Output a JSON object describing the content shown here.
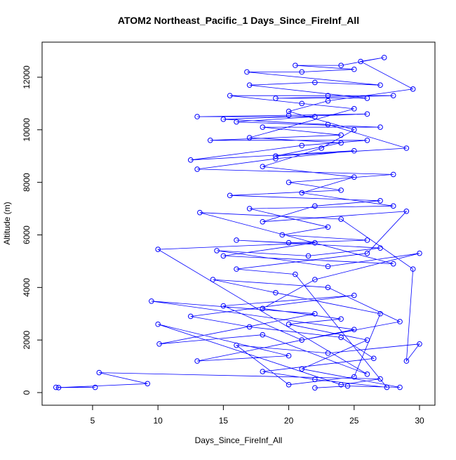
{
  "chart_data": {
    "type": "line",
    "markers": true,
    "title": "ATOM2 Northeast_Pacific_1 Days_Since_FireInf_All",
    "x_label": "Days_Since_FireInf_All",
    "y_label": "Altitude (m)",
    "xlim": [
      1.14,
      31.18
    ],
    "ylim": [
      -481,
      13335
    ],
    "xticks": [
      5,
      10,
      15,
      20,
      25,
      30
    ],
    "yticks": [
      0,
      2000,
      4000,
      6000,
      8000,
      10000,
      12000
    ],
    "series": [
      {
        "color": "#0000ff",
        "x": [
          2.2,
          5.2,
          2.4,
          9.2,
          5.5,
          27,
          24,
          10,
          20,
          13,
          25,
          9.5,
          22,
          10.1,
          18,
          26,
          10,
          22,
          15,
          28,
          13.2,
          24,
          29.5,
          29,
          30,
          23,
          16,
          20,
          25,
          27,
          19,
          14.2,
          23,
          28.5,
          21,
          15,
          25,
          12.5,
          17,
          24,
          26.5,
          18,
          22,
          27.5,
          20.5,
          16,
          26,
          29,
          18,
          22,
          27,
          15.5,
          24,
          20,
          28,
          13,
          19,
          25,
          12.5,
          21,
          26,
          14,
          24,
          18,
          27,
          16,
          22,
          13,
          20,
          26,
          15,
          23,
          29,
          19,
          24,
          17,
          25,
          21,
          15.5,
          23,
          28,
          19,
          26,
          17,
          22,
          27,
          16.8,
          21,
          25,
          20.5,
          24,
          27.3,
          25.5,
          29.5,
          23,
          20,
          25,
          22.5,
          18,
          25,
          21,
          28,
          17,
          23,
          19.5,
          26,
          20,
          16,
          27,
          21.5,
          14.5,
          23,
          30,
          22,
          18,
          24,
          20,
          26,
          21,
          28.5,
          24.5,
          22
        ],
        "values": [
          200,
          200,
          190,
          340,
          760,
          520,
          300,
          2600,
          1400,
          1200,
          2400,
          3480,
          3000,
          1850,
          2200,
          700,
          5450,
          5700,
          5200,
          4900,
          6850,
          6600,
          4700,
          1200,
          1850,
          1500,
          1800,
          300,
          600,
          3000,
          3800,
          4300,
          4000,
          2700,
          2000,
          3300,
          3700,
          2900,
          2500,
          2100,
          1300,
          800,
          500,
          200,
          4500,
          4700,
          5300,
          6900,
          6500,
          7100,
          7300,
          7500,
          7700,
          8000,
          8300,
          8500,
          8900,
          9200,
          8850,
          9400,
          9600,
          9600,
          9800,
          10100,
          10100,
          10300,
          10500,
          10500,
          10550,
          10600,
          10400,
          10200,
          9300,
          9000,
          9500,
          9700,
          10800,
          11000,
          11300,
          11300,
          11300,
          11200,
          11200,
          11700,
          11800,
          11700,
          12200,
          12200,
          12300,
          12450,
          12450,
          12750,
          12600,
          11550,
          11100,
          10700,
          10000,
          9300,
          8600,
          8200,
          7600,
          7100,
          7000,
          6300,
          6000,
          5800,
          5700,
          5800,
          5500,
          5200,
          5400,
          4800,
          5300,
          4300,
          3200,
          2800,
          2600,
          2000,
          900,
          200,
          250,
          180
        ]
      }
    ]
  }
}
